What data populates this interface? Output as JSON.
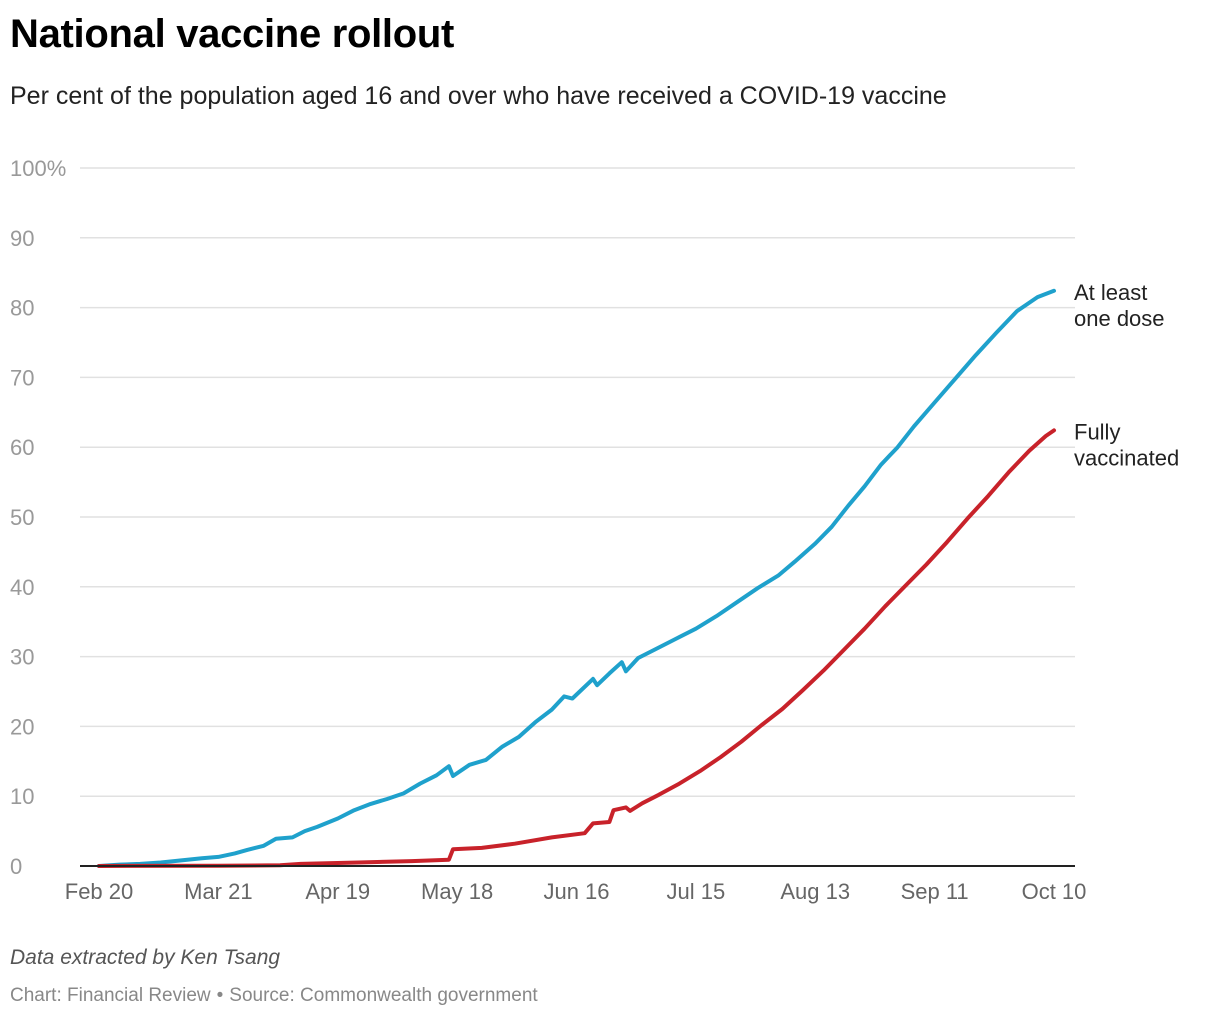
{
  "header": {
    "title": "National vaccine rollout",
    "subtitle": "Per cent of the population aged 16 and over who have received a COVID-19 vaccine"
  },
  "footer": {
    "note": "Data extracted by Ken Tsang",
    "chart_credit": "Chart: Financial Review",
    "separator": "•",
    "source": "Source: Commonwealth government"
  },
  "colors": {
    "first_dose": "#1fa1cc",
    "fully_vaccinated": "#c8222a",
    "grid": "#e1e1e1",
    "axis": "#222222",
    "tick_text": "#999999",
    "label_text": "#222222"
  },
  "chart_data": {
    "type": "line",
    "title": "National vaccine rollout",
    "subtitle": "Per cent of the population aged 16 and over who have received a COVID-19 vaccine",
    "xlabel": "",
    "ylabel": "",
    "x_ticks": [
      "Feb 20",
      "Mar 21",
      "Apr 19",
      "May 18",
      "Jun 16",
      "Jul 15",
      "Aug 13",
      "Sep 11",
      "Oct 10"
    ],
    "x_ticks_days": [
      0,
      29,
      58,
      87,
      116,
      145,
      174,
      203,
      232
    ],
    "y_ticks": [
      "100%",
      "90",
      "80",
      "70",
      "60",
      "50",
      "40",
      "30",
      "20",
      "10",
      "0"
    ],
    "ylim": [
      0,
      100
    ],
    "grid": true,
    "legend": "direct labels at line ends (right)",
    "series": [
      {
        "name": "At least one dose",
        "label_lines": [
          "At least",
          "one dose"
        ],
        "color": "#1fa1cc",
        "points": [
          [
            "Feb 20",
            0.0
          ],
          [
            "Feb 25",
            0.2
          ],
          [
            "Mar 2",
            0.3
          ],
          [
            "Mar 7",
            0.5
          ],
          [
            "Mar 12",
            0.8
          ],
          [
            "Mar 17",
            1.1
          ],
          [
            "Mar 21",
            1.3
          ],
          [
            "Mar 25",
            1.8
          ],
          [
            "Mar 28",
            2.3
          ],
          [
            "Apr 1",
            2.9
          ],
          [
            "Apr 4",
            3.9
          ],
          [
            "Apr 8",
            4.1
          ],
          [
            "Apr 11",
            5.0
          ],
          [
            "Apr 14",
            5.6
          ],
          [
            "Apr 19",
            6.8
          ],
          [
            "Apr 23",
            8.0
          ],
          [
            "Apr 27",
            8.9
          ],
          [
            "May 1",
            9.6
          ],
          [
            "May 5",
            10.4
          ],
          [
            "May 9",
            11.8
          ],
          [
            "May 13",
            13.0
          ],
          [
            "May 16",
            14.3
          ],
          [
            "May 17",
            12.9
          ],
          [
            "May 21",
            14.5
          ],
          [
            "May 25",
            15.2
          ],
          [
            "May 29",
            17.1
          ],
          [
            "Jun 2",
            18.5
          ],
          [
            "Jun 6",
            20.6
          ],
          [
            "Jun 10",
            22.4
          ],
          [
            "Jun 13",
            24.3
          ],
          [
            "Jun 15",
            24.0
          ],
          [
            "Jun 20",
            26.8
          ],
          [
            "Jun 21",
            25.9
          ],
          [
            "Jun 24",
            27.6
          ],
          [
            "Jun 27",
            29.2
          ],
          [
            "Jun 28",
            27.9
          ],
          [
            "Jul 1",
            29.8
          ],
          [
            "Jul 5",
            31.0
          ],
          [
            "Jul 10",
            32.5
          ],
          [
            "Jul 15",
            34.0
          ],
          [
            "Jul 20",
            35.8
          ],
          [
            "Jul 25",
            37.8
          ],
          [
            "Jul 30",
            39.8
          ],
          [
            "Aug 4",
            41.6
          ],
          [
            "Aug 8",
            43.6
          ],
          [
            "Aug 13",
            46.2
          ],
          [
            "Aug 17",
            48.6
          ],
          [
            "Aug 21",
            51.6
          ],
          [
            "Aug 25",
            54.4
          ],
          [
            "Aug 29",
            57.5
          ],
          [
            "Sep 2",
            60.0
          ],
          [
            "Sep 6",
            63.0
          ],
          [
            "Sep 11",
            66.4
          ],
          [
            "Sep 16",
            69.8
          ],
          [
            "Sep 21",
            73.2
          ],
          [
            "Sep 26",
            76.4
          ],
          [
            "Oct 1",
            79.5
          ],
          [
            "Oct 6",
            81.5
          ],
          [
            "Oct 10",
            82.4
          ]
        ]
      },
      {
        "name": "Fully vaccinated",
        "label_lines": [
          "Fully",
          "vaccinated"
        ],
        "color": "#c8222a",
        "points": [
          [
            "Feb 20",
            0.0
          ],
          [
            "Mar 21",
            0.05
          ],
          [
            "Apr 5",
            0.1
          ],
          [
            "Apr 10",
            0.3
          ],
          [
            "Apr 24",
            0.5
          ],
          [
            "May 7",
            0.7
          ],
          [
            "May 16",
            0.9
          ],
          [
            "May 17",
            2.4
          ],
          [
            "May 24",
            2.6
          ],
          [
            "Jun 1",
            3.2
          ],
          [
            "Jun 10",
            4.1
          ],
          [
            "Jun 18",
            4.7
          ],
          [
            "Jun 20",
            6.1
          ],
          [
            "Jun 24",
            6.3
          ],
          [
            "Jun 25",
            8.0
          ],
          [
            "Jun 28",
            8.4
          ],
          [
            "Jun 29",
            7.9
          ],
          [
            "Jul 2",
            9.0
          ],
          [
            "Jul 6",
            10.2
          ],
          [
            "Jul 11",
            11.8
          ],
          [
            "Jul 16",
            13.6
          ],
          [
            "Jul 21",
            15.6
          ],
          [
            "Jul 26",
            17.8
          ],
          [
            "Jul 31",
            20.2
          ],
          [
            "Aug 5",
            22.5
          ],
          [
            "Aug 10",
            25.2
          ],
          [
            "Aug 15",
            28.0
          ],
          [
            "Aug 20",
            31.0
          ],
          [
            "Aug 25",
            34.0
          ],
          [
            "Aug 30",
            37.2
          ],
          [
            "Sep 4",
            40.2
          ],
          [
            "Sep 9",
            43.2
          ],
          [
            "Sep 14",
            46.4
          ],
          [
            "Sep 19",
            49.8
          ],
          [
            "Sep 24",
            53.0
          ],
          [
            "Sep 29",
            56.4
          ],
          [
            "Oct 4",
            59.5
          ],
          [
            "Oct 8",
            61.6
          ],
          [
            "Oct 10",
            62.4
          ]
        ]
      }
    ]
  }
}
